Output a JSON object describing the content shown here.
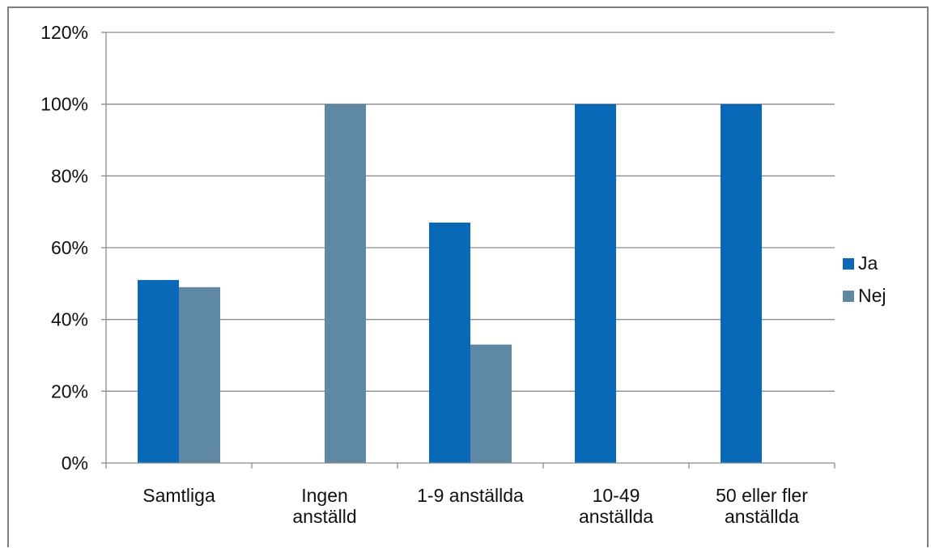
{
  "chart_data": {
    "type": "bar",
    "categories": [
      [
        "Samtliga"
      ],
      [
        "Ingen",
        "anställd"
      ],
      [
        "1-9 anställda"
      ],
      [
        "10-49",
        "anställda"
      ],
      [
        "50 eller fler",
        "anställda"
      ]
    ],
    "series": [
      {
        "name": "Ja",
        "color": "#0969b6",
        "values": [
          51,
          0,
          67,
          100,
          100
        ]
      },
      {
        "name": "Nej",
        "color": "#5f88a5",
        "values": [
          49,
          100,
          33,
          0,
          0
        ]
      }
    ],
    "y_ticks": [
      "0%",
      "20%",
      "40%",
      "60%",
      "80%",
      "100%",
      "120%"
    ],
    "ylim": [
      0,
      120
    ],
    "y_unit": "%",
    "grid": true,
    "legend_position": "right",
    "colors": {
      "grid": "#8c8c8c",
      "axis": "#8c8c8c",
      "frame": "#7f7f7f"
    }
  }
}
